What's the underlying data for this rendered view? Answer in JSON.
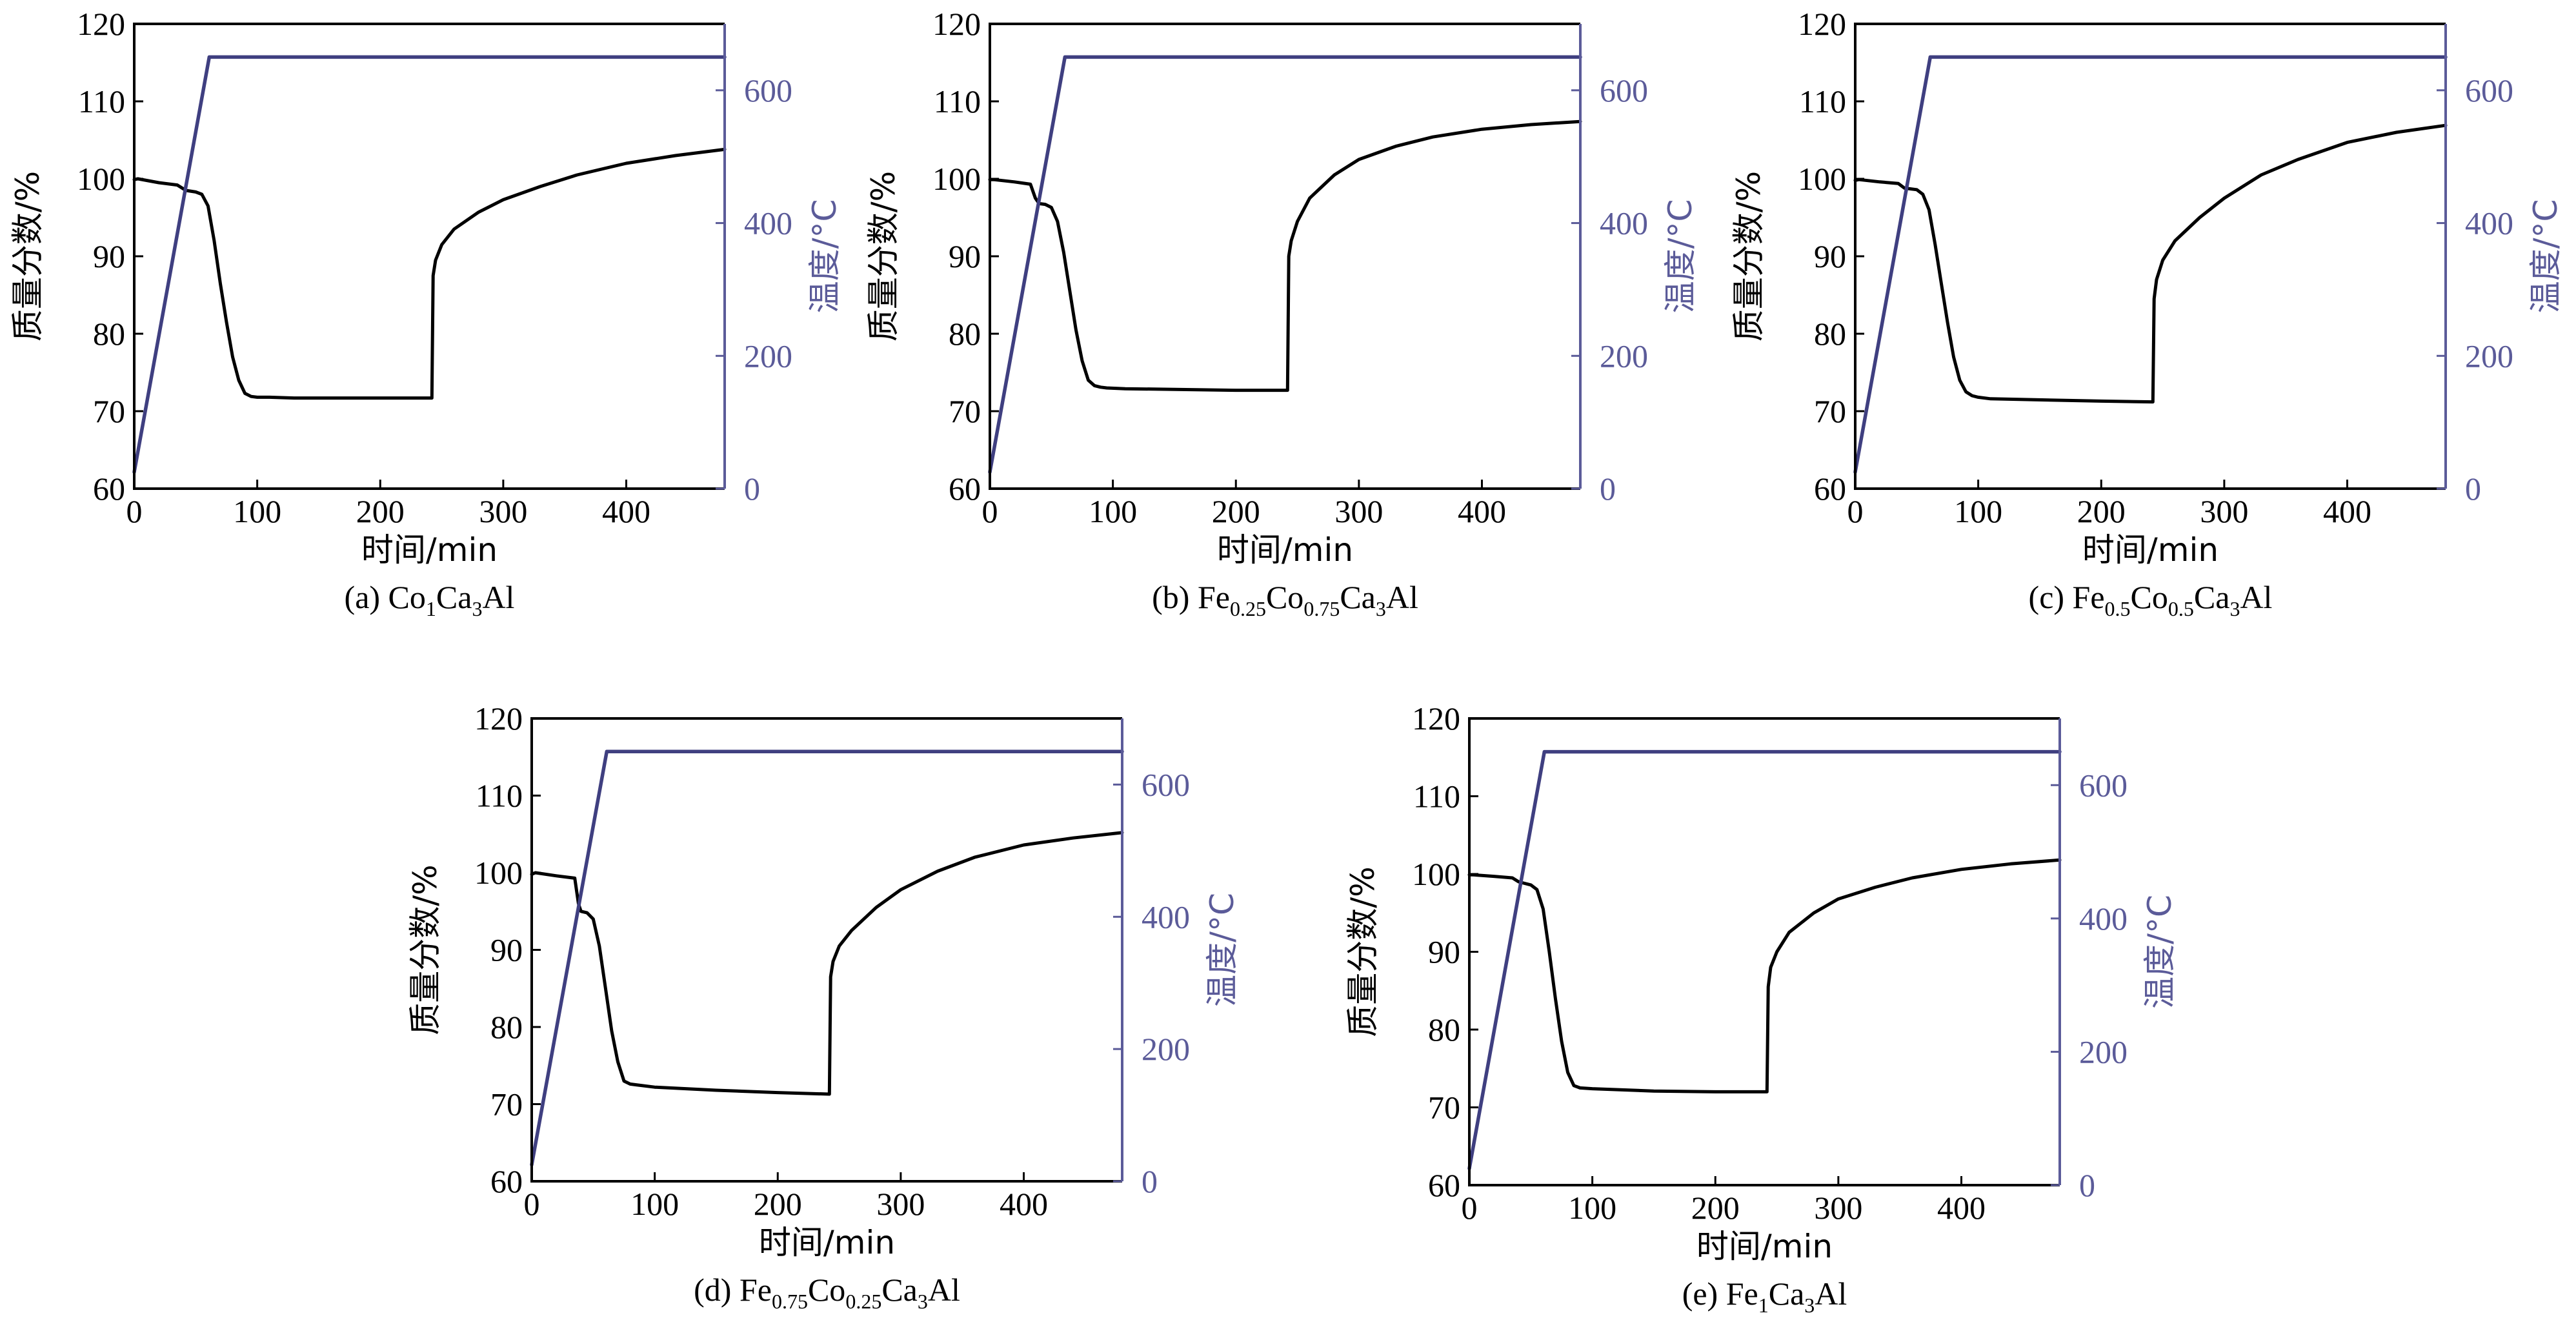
{
  "colors": {
    "mass_line": "#000000",
    "temperature_line": "#3f3f80",
    "temperature_axis": "#5b5b99",
    "frame": "#000000"
  },
  "chart_data": [
    {
      "type": "line",
      "caption_prefix": "(a) ",
      "caption_formula": [
        {
          "t": "Co"
        },
        {
          "s": "1"
        },
        {
          "t": "Ca"
        },
        {
          "s": "3"
        },
        {
          "t": "Al"
        }
      ],
      "xlabel": "时间/min",
      "ylabel_left": "质量分数/%",
      "ylabel_right": "温度/°C",
      "xlim": [
        0,
        480
      ],
      "ylim_left": [
        60,
        120
      ],
      "ylim_right": [
        0,
        700
      ],
      "xticks": [
        0,
        100,
        200,
        300,
        400
      ],
      "yticks_left": [
        60,
        70,
        80,
        90,
        100,
        110,
        120
      ],
      "yticks_right": [
        0,
        200,
        400,
        600
      ],
      "series": [
        {
          "axis": "left",
          "color_key": "mass_line",
          "x": [
            0,
            3,
            20,
            35,
            40,
            42,
            50,
            55,
            60,
            65,
            70,
            75,
            80,
            85,
            90,
            95,
            100,
            110,
            130,
            200,
            242,
            243,
            245,
            250,
            260,
            280,
            300,
            330,
            360,
            400,
            440,
            480
          ],
          "y": [
            99.9,
            100.0,
            99.5,
            99.2,
            98.7,
            98.5,
            98.3,
            98.0,
            96.5,
            92.0,
            86.5,
            81.5,
            77.0,
            74.0,
            72.3,
            71.9,
            71.8,
            71.8,
            71.7,
            71.7,
            71.7,
            87.5,
            89.5,
            91.5,
            93.5,
            95.7,
            97.3,
            99.0,
            100.5,
            102.0,
            103.0,
            103.8
          ]
        },
        {
          "axis": "right",
          "color_key": "temperature_line",
          "x": [
            0,
            61,
            480
          ],
          "y": [
            25,
            650,
            650
          ]
        }
      ]
    },
    {
      "type": "line",
      "caption_prefix": "(b) ",
      "caption_formula": [
        {
          "t": "Fe"
        },
        {
          "s": "0.25"
        },
        {
          "t": "Co"
        },
        {
          "s": "0.75"
        },
        {
          "t": "Ca"
        },
        {
          "s": "3"
        },
        {
          "t": "Al"
        }
      ],
      "xlabel": "时间/min",
      "ylabel_left": "质量分数/%",
      "ylabel_right": "温度/°C",
      "xlim": [
        0,
        480
      ],
      "ylim_left": [
        60,
        120
      ],
      "ylim_right": [
        0,
        700
      ],
      "xticks": [
        0,
        100,
        200,
        300,
        400
      ],
      "yticks_left": [
        60,
        70,
        80,
        90,
        100,
        110,
        120
      ],
      "yticks_right": [
        0,
        200,
        400,
        600
      ],
      "series": [
        {
          "axis": "left",
          "color_key": "mass_line",
          "x": [
            0,
            3,
            20,
            33,
            37,
            40,
            45,
            50,
            55,
            60,
            65,
            70,
            75,
            80,
            85,
            90,
            95,
            110,
            200,
            242,
            243,
            245,
            250,
            260,
            280,
            300,
            330,
            360,
            400,
            440,
            480
          ],
          "y": [
            99.9,
            99.9,
            99.6,
            99.3,
            97.5,
            96.8,
            96.7,
            96.3,
            94.5,
            90.5,
            85.5,
            80.5,
            76.5,
            74.0,
            73.3,
            73.1,
            73.0,
            72.9,
            72.7,
            72.7,
            90.0,
            92.0,
            94.5,
            97.5,
            100.5,
            102.5,
            104.2,
            105.4,
            106.4,
            107.0,
            107.4
          ]
        },
        {
          "axis": "right",
          "color_key": "temperature_line",
          "x": [
            0,
            61,
            480
          ],
          "y": [
            25,
            650,
            650
          ]
        }
      ]
    },
    {
      "type": "line",
      "caption_prefix": "(c) ",
      "caption_formula": [
        {
          "t": "Fe"
        },
        {
          "s": "0.5"
        },
        {
          "t": "Co"
        },
        {
          "s": "0.5"
        },
        {
          "t": "Ca"
        },
        {
          "s": "3"
        },
        {
          "t": "Al"
        }
      ],
      "xlabel": "时间/min",
      "ylabel_left": "质量分数/%",
      "ylabel_right": "温度/°C",
      "xlim": [
        0,
        480
      ],
      "ylim_left": [
        60,
        120
      ],
      "ylim_right": [
        0,
        700
      ],
      "xticks": [
        0,
        100,
        200,
        300,
        400
      ],
      "yticks_left": [
        60,
        70,
        80,
        90,
        100,
        110,
        120
      ],
      "yticks_right": [
        0,
        200,
        400,
        600
      ],
      "series": [
        {
          "axis": "left",
          "color_key": "mass_line",
          "x": [
            0,
            3,
            20,
            35,
            40,
            45,
            50,
            55,
            60,
            65,
            70,
            75,
            80,
            85,
            90,
            95,
            100,
            110,
            200,
            242,
            243,
            245,
            250,
            260,
            280,
            300,
            330,
            360,
            400,
            440,
            480
          ],
          "y": [
            99.8,
            99.9,
            99.6,
            99.4,
            98.8,
            98.7,
            98.6,
            98.0,
            96.0,
            91.5,
            86.5,
            81.5,
            77.0,
            74.0,
            72.5,
            72.0,
            71.8,
            71.6,
            71.3,
            71.2,
            84.5,
            87.0,
            89.5,
            92.0,
            95.0,
            97.5,
            100.5,
            102.5,
            104.7,
            106.0,
            106.9
          ]
        },
        {
          "axis": "right",
          "color_key": "temperature_line",
          "x": [
            0,
            61,
            480
          ],
          "y": [
            25,
            650,
            650
          ]
        }
      ]
    },
    {
      "type": "line",
      "caption_prefix": "(d) ",
      "caption_formula": [
        {
          "t": "Fe"
        },
        {
          "s": "0.75"
        },
        {
          "t": "Co"
        },
        {
          "s": "0.25"
        },
        {
          "t": "Ca"
        },
        {
          "s": "3"
        },
        {
          "t": "Al"
        }
      ],
      "xlabel": "时间/min",
      "ylabel_left": "质量分数/%",
      "ylabel_right": "温度/°C",
      "xlim": [
        0,
        480
      ],
      "ylim_left": [
        60,
        120
      ],
      "ylim_right": [
        0,
        700
      ],
      "xticks": [
        0,
        100,
        200,
        300,
        400
      ],
      "yticks_left": [
        60,
        70,
        80,
        90,
        100,
        110,
        120
      ],
      "yticks_right": [
        0,
        200,
        400,
        600
      ],
      "series": [
        {
          "axis": "left",
          "color_key": "mass_line",
          "x": [
            0,
            3,
            20,
            35,
            38,
            40,
            45,
            50,
            55,
            60,
            65,
            70,
            75,
            80,
            85,
            100,
            150,
            200,
            242,
            243,
            245,
            250,
            260,
            280,
            300,
            330,
            360,
            400,
            440,
            480
          ],
          "y": [
            99.8,
            100.0,
            99.6,
            99.3,
            96.0,
            95.0,
            94.8,
            94.0,
            90.5,
            85.0,
            79.5,
            75.5,
            73.0,
            72.6,
            72.5,
            72.2,
            71.8,
            71.5,
            71.3,
            86.5,
            88.5,
            90.5,
            92.5,
            95.5,
            97.8,
            100.2,
            102.0,
            103.6,
            104.5,
            105.2
          ]
        },
        {
          "axis": "right",
          "color_key": "temperature_line",
          "x": [
            0,
            61,
            480
          ],
          "y": [
            25,
            650,
            650
          ]
        }
      ]
    },
    {
      "type": "line",
      "caption_prefix": "(e) ",
      "caption_formula": [
        {
          "t": "Fe"
        },
        {
          "s": "1"
        },
        {
          "t": "Ca"
        },
        {
          "s": "3"
        },
        {
          "t": "Al"
        }
      ],
      "xlabel": "时间/min",
      "ylabel_left": "质量分数/%",
      "ylabel_right": "温度/°C",
      "xlim": [
        0,
        480
      ],
      "ylim_left": [
        60,
        120
      ],
      "ylim_right": [
        0,
        700
      ],
      "xticks": [
        0,
        100,
        200,
        300,
        400
      ],
      "yticks_left": [
        60,
        70,
        80,
        90,
        100,
        110,
        120
      ],
      "yticks_right": [
        0,
        200,
        400,
        600
      ],
      "series": [
        {
          "axis": "left",
          "color_key": "mass_line",
          "x": [
            0,
            3,
            20,
            35,
            40,
            45,
            50,
            55,
            60,
            65,
            70,
            75,
            80,
            85,
            90,
            100,
            150,
            200,
            242,
            243,
            245,
            250,
            260,
            280,
            300,
            330,
            360,
            400,
            440,
            480
          ],
          "y": [
            99.9,
            99.9,
            99.7,
            99.5,
            99.0,
            98.8,
            98.6,
            98.0,
            95.5,
            90.0,
            84.0,
            78.5,
            74.5,
            72.8,
            72.5,
            72.4,
            72.1,
            72.0,
            72.0,
            85.5,
            88.0,
            90.0,
            92.5,
            95.0,
            96.8,
            98.3,
            99.5,
            100.6,
            101.3,
            101.8
          ]
        },
        {
          "axis": "right",
          "color_key": "temperature_line",
          "x": [
            0,
            61,
            480
          ],
          "y": [
            25,
            650,
            650
          ]
        }
      ]
    }
  ]
}
